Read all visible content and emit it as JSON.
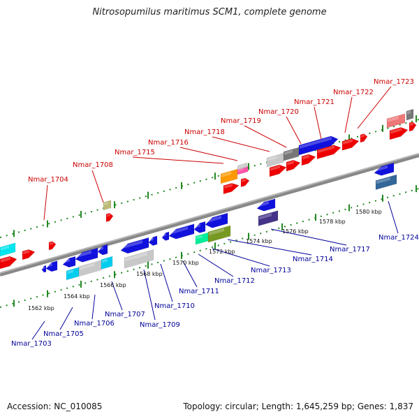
{
  "title": "Nitrosopumilus maritimus SCM1, complete genome",
  "accession": "Accession: NC_010085",
  "topology": "Topology: circular; Length: 1,645,259 bp; Genes: 1,837",
  "kbp_labels": [
    "1562 kbp",
    "1564 kbp",
    "1566 kbp",
    "1568 kbp",
    "1570 kbp",
    "1572 kbp",
    "1574 kbp",
    "1576 kbp",
    "1578 kbp",
    "1580 kbp"
  ],
  "top_genes": [
    "Nmar_1704",
    "Nmar_1708",
    "Nmar_1715",
    "Nmar_1716",
    "Nmar_1718",
    "Nmar_1719",
    "Nmar_1720",
    "Nmar_1721",
    "Nmar_1722",
    "Nmar_1723"
  ],
  "bottom_genes": [
    "Nmar_1703",
    "Nmar_1705",
    "Nmar_1706",
    "Nmar_1707",
    "Nmar_1709",
    "Nmar_1710",
    "Nmar_1711",
    "Nmar_1712",
    "Nmar_1713",
    "Nmar_1714",
    "Nmar_1717",
    "Nmar_1724"
  ],
  "colors": {
    "forward": "#ee0000",
    "reverse": "#1111dd",
    "top_label": "#cc0000",
    "bottom_label": "#000099",
    "backbone": "#888888",
    "tick": "#228822"
  }
}
